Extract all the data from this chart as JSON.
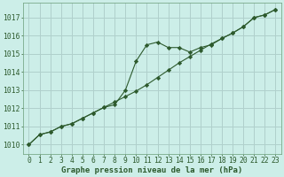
{
  "title": "Graphe pression niveau de la mer (hPa)",
  "bg_color": "#cceee8",
  "grid_color": "#b0d0cc",
  "line_color": "#2d5a2d",
  "xlim": [
    -0.5,
    23.5
  ],
  "ylim": [
    1009.5,
    1017.8
  ],
  "xticks": [
    0,
    1,
    2,
    3,
    4,
    5,
    6,
    7,
    8,
    9,
    10,
    11,
    12,
    13,
    14,
    15,
    16,
    17,
    18,
    19,
    20,
    21,
    22,
    23
  ],
  "yticks": [
    1010,
    1011,
    1012,
    1013,
    1014,
    1015,
    1016,
    1017
  ],
  "series1_x": [
    0,
    1,
    2,
    3,
    4,
    5,
    6,
    7,
    8,
    9,
    10,
    11,
    12,
    13,
    14,
    15,
    16,
    17,
    18,
    19,
    20,
    21,
    22,
    23
  ],
  "series1_y": [
    1010.0,
    1010.55,
    1010.7,
    1011.0,
    1011.15,
    1011.45,
    1011.75,
    1012.05,
    1012.2,
    1013.0,
    1014.6,
    1015.5,
    1015.65,
    1015.35,
    1015.35,
    1015.1,
    1015.35,
    1015.5,
    1015.85,
    1016.15,
    1016.5,
    1017.0,
    1017.15,
    1017.45
  ],
  "series2_x": [
    0,
    1,
    2,
    3,
    4,
    5,
    6,
    7,
    8,
    9,
    10,
    11,
    12,
    13,
    14,
    15,
    16,
    17,
    18,
    19,
    20,
    21,
    22,
    23
  ],
  "series2_y": [
    1010.0,
    1010.55,
    1010.7,
    1011.0,
    1011.15,
    1011.45,
    1011.75,
    1012.05,
    1012.35,
    1012.65,
    1012.95,
    1013.3,
    1013.7,
    1014.1,
    1014.5,
    1014.85,
    1015.2,
    1015.55,
    1015.85,
    1016.15,
    1016.5,
    1017.0,
    1017.15,
    1017.45
  ],
  "ylabel_fontsize": 5.8,
  "xlabel_fontsize": 6.5,
  "title_fontsize": 6.5
}
